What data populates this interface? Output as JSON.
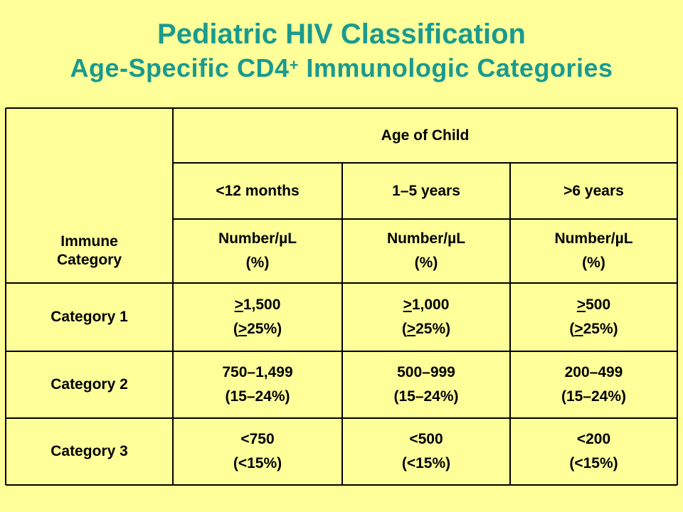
{
  "title": "Pediatric HIV Classification",
  "subtitle": {
    "text": "Age-Specific CD4",
    "sup": "+",
    "rest": " Immunologic Categories"
  },
  "table": {
    "group_header": "Age of Child",
    "age_groups": [
      "<12 months",
      "1–5 years",
      ">6 years"
    ],
    "units_row": {
      "label_line1": "Immune",
      "label_line2": "Category",
      "unit_line1": "Number/µL",
      "unit_line2": "(%)"
    },
    "rows": [
      {
        "label": "Category 1",
        "cells": [
          {
            "gte": ">",
            "num": "1,500",
            "pct_open": "(",
            "pct_gte": ">",
            "pct": "25%)"
          },
          {
            "gte": ">",
            "num": "1,000",
            "pct_open": "(",
            "pct_gte": ">",
            "pct": "25%)"
          },
          {
            "gte": ">",
            "num": "500",
            "pct_open": "(",
            "pct_gte": ">",
            "pct": "25%)"
          }
        ]
      },
      {
        "label": "Category 2",
        "cells": [
          {
            "num": "750–1,499",
            "pct": "(15–24%)"
          },
          {
            "num": "500–999",
            "pct": "(15–24%)"
          },
          {
            "num": "200–499",
            "pct": "(15–24%)"
          }
        ]
      },
      {
        "label": "Category 3",
        "cells": [
          {
            "num": "<750",
            "pct": "(<15%)"
          },
          {
            "num": "<500",
            "pct": "(<15%)"
          },
          {
            "num": "<200",
            "pct": "(<15%)"
          }
        ]
      }
    ]
  },
  "colors": {
    "background": "#ffff99",
    "title": "#1a9a8f",
    "text": "#000000"
  }
}
